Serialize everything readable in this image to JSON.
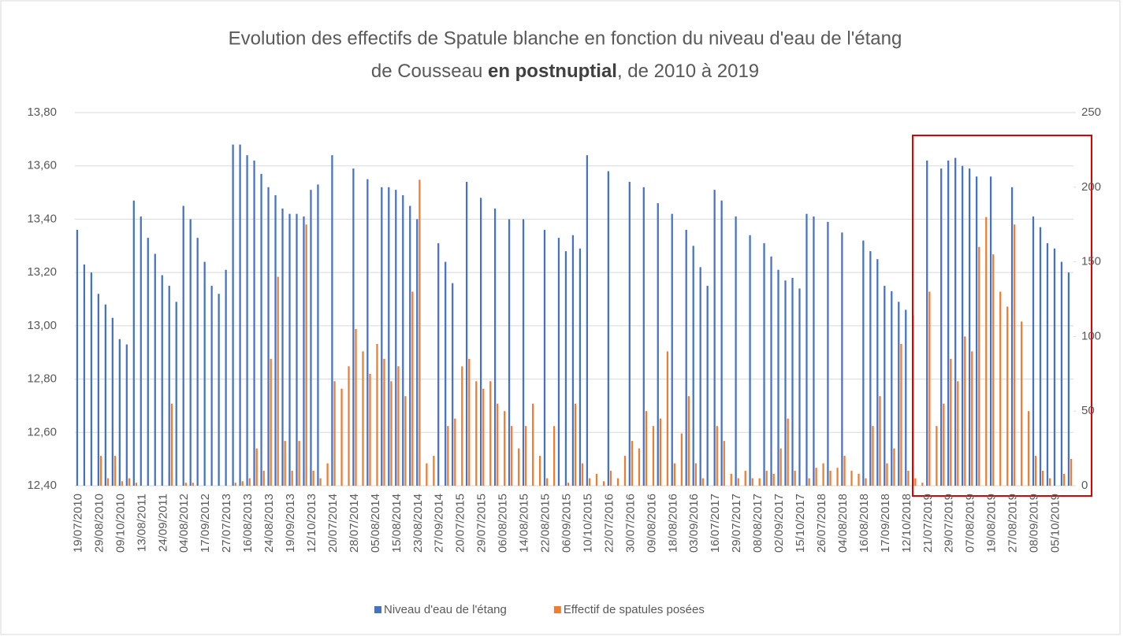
{
  "chart_data": {
    "type": "bar",
    "title_parts": [
      "Evolution des effectifs de Spatule blanche en fonction du niveau d'eau de l'étang",
      "de Cousseau ",
      "en postnuptial",
      ", de 2010 à 2019"
    ],
    "categories": [
      "19/07/2010",
      null,
      null,
      "29/08/2010",
      null,
      null,
      "09/10/2010",
      null,
      null,
      "13/08/2011",
      null,
      null,
      "24/09/2011",
      null,
      null,
      "04/08/2012",
      null,
      null,
      "17/09/2012",
      null,
      null,
      "27/07/2013",
      null,
      null,
      "16/08/2013",
      null,
      null,
      "24/08/2013",
      null,
      null,
      "19/09/2013",
      null,
      null,
      "12/10/2013",
      null,
      null,
      "20/07/2014",
      null,
      null,
      "28/07/2014",
      null,
      null,
      "05/08/2014",
      null,
      null,
      "15/08/2014",
      null,
      null,
      "23/08/2014",
      null,
      null,
      "27/09/2014",
      null,
      null,
      "20/07/2015",
      null,
      null,
      "29/07/2015",
      null,
      null,
      "06/08/2015",
      null,
      null,
      "14/08/2015",
      null,
      null,
      "22/08/2015",
      null,
      null,
      "06/09/2015",
      null,
      null,
      "10/10/2015",
      null,
      null,
      "22/07/2016",
      null,
      null,
      "30/07/2016",
      null,
      null,
      "09/08/2016",
      null,
      null,
      "18/08/2016",
      null,
      null,
      "03/09/2016",
      null,
      null,
      "16/07/2017",
      null,
      null,
      "29/07/2017",
      null,
      null,
      "08/08/2017",
      null,
      null,
      "02/09/2017",
      null,
      null,
      "15/10/2017",
      null,
      null,
      "26/07/2018",
      null,
      null,
      "04/08/2018",
      null,
      null,
      "16/08/2018",
      null,
      null,
      "17/09/2018",
      null,
      null,
      "12/10/2018",
      null,
      null,
      "21/07/2019",
      null,
      null,
      "29/07/2019",
      null,
      null,
      "07/08/2019",
      null,
      null,
      "19/08/2019",
      null,
      null,
      "27/08/2019",
      null,
      null,
      "08/09/2019",
      null,
      null,
      "05/10/2019",
      null,
      null
    ],
    "series": [
      {
        "name": "Niveau d'eau de l'étang",
        "color": "#4472c4",
        "axis": "y",
        "values": [
          13.36,
          13.23,
          13.2,
          13.12,
          13.08,
          13.03,
          12.95,
          12.93,
          13.47,
          13.41,
          13.33,
          13.27,
          13.19,
          13.15,
          13.09,
          13.45,
          13.4,
          13.33,
          13.24,
          13.15,
          13.12,
          13.21,
          13.68,
          13.68,
          13.64,
          13.62,
          13.57,
          13.52,
          13.49,
          13.44,
          13.42,
          13.42,
          13.41,
          13.51,
          13.53,
          null,
          13.64,
          null,
          null,
          13.59,
          null,
          13.55,
          null,
          13.52,
          13.52,
          13.51,
          13.49,
          13.45,
          13.4,
          null,
          null,
          13.31,
          13.24,
          13.16,
          null,
          13.54,
          null,
          13.48,
          null,
          13.44,
          null,
          13.4,
          null,
          13.4,
          null,
          null,
          13.36,
          null,
          13.33,
          13.28,
          13.34,
          13.29,
          13.64,
          null,
          null,
          13.58,
          null,
          null,
          13.54,
          null,
          13.52,
          null,
          13.46,
          null,
          13.42,
          null,
          13.36,
          13.3,
          13.22,
          13.15,
          13.51,
          13.47,
          null,
          13.41,
          null,
          13.34,
          null,
          13.31,
          13.26,
          13.21,
          13.17,
          13.18,
          13.14,
          13.42,
          13.41,
          null,
          13.39,
          null,
          13.35,
          null,
          null,
          13.32,
          13.28,
          13.25,
          13.15,
          13.13,
          13.09,
          13.06,
          13.04,
          null,
          13.62,
          null,
          13.59,
          13.62,
          13.63,
          13.6,
          13.59,
          13.56,
          null,
          13.56,
          null,
          null,
          13.52,
          null,
          null,
          13.41,
          13.37,
          13.31,
          13.29,
          13.24,
          13.2
        ]
      },
      {
        "name": "Effectif de spatules posées",
        "color": "#ed7d31",
        "axis": "y2",
        "values": [
          0,
          0,
          0,
          20,
          5,
          20,
          3,
          5,
          2,
          0,
          0,
          0,
          0,
          55,
          0,
          2,
          2,
          0,
          0,
          0,
          0,
          0,
          2,
          3,
          5,
          25,
          10,
          85,
          140,
          30,
          10,
          30,
          175,
          10,
          5,
          15,
          70,
          65,
          80,
          105,
          90,
          75,
          95,
          85,
          70,
          80,
          60,
          130,
          205,
          15,
          20,
          0,
          40,
          45,
          80,
          85,
          70,
          65,
          70,
          55,
          50,
          40,
          25,
          40,
          55,
          20,
          5,
          40,
          0,
          2,
          55,
          15,
          5,
          8,
          3,
          10,
          5,
          20,
          30,
          25,
          50,
          40,
          45,
          90,
          15,
          35,
          60,
          15,
          5,
          0,
          40,
          30,
          8,
          5,
          10,
          5,
          5,
          10,
          8,
          25,
          45,
          10,
          0,
          5,
          12,
          15,
          10,
          12,
          20,
          10,
          8,
          5,
          40,
          60,
          15,
          25,
          95,
          10,
          5,
          2,
          130,
          40,
          55,
          85,
          70,
          100,
          90,
          160,
          180,
          155,
          130,
          120,
          175,
          110,
          50,
          20,
          10,
          5,
          0,
          8,
          18
        ]
      }
    ],
    "ylim": [
      12.4,
      13.8
    ],
    "yticks": [
      {
        "value": 12.4,
        "label": "12,40"
      },
      {
        "value": 12.6,
        "label": "12,60"
      },
      {
        "value": 12.8,
        "label": "12,80"
      },
      {
        "value": 13.0,
        "label": "13,00"
      },
      {
        "value": 13.2,
        "label": "13,20"
      },
      {
        "value": 13.4,
        "label": "13,40"
      },
      {
        "value": 13.6,
        "label": "13,60"
      },
      {
        "value": 13.8,
        "label": "13,80"
      }
    ],
    "y2lim": [
      0,
      250
    ],
    "y2ticks": [
      0,
      50,
      100,
      150,
      200,
      250
    ],
    "grid": true
  }
}
